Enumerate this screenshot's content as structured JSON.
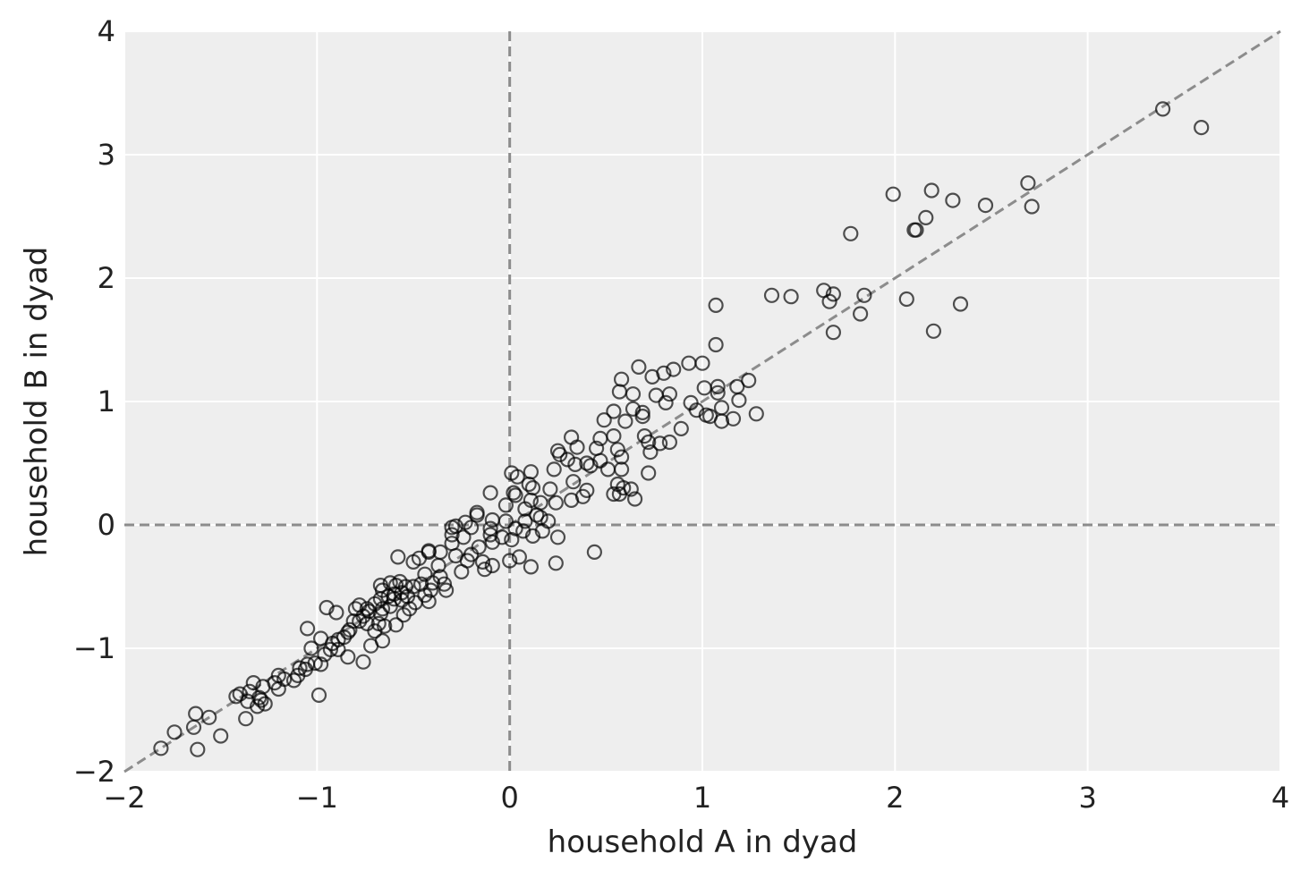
{
  "chart_data": {
    "type": "scatter",
    "title": "",
    "xlabel": "household A in dyad",
    "ylabel": "household B in dyad",
    "xlim": [
      -2,
      4
    ],
    "ylim": [
      -2,
      4
    ],
    "x_ticks": [
      -2,
      -1,
      0,
      1,
      2,
      3,
      4
    ],
    "y_ticks": [
      -2,
      -1,
      0,
      1,
      2,
      3,
      4
    ],
    "x_tick_labels": [
      "−2",
      "−1",
      "0",
      "1",
      "2",
      "3",
      "4"
    ],
    "y_tick_labels": [
      "−2",
      "−1",
      "0",
      "1",
      "2",
      "3",
      "4"
    ],
    "grid": true,
    "background": "#eeeeee",
    "marker": "open-circle",
    "marker_color": "#000000",
    "reference_lines": [
      {
        "kind": "vertical",
        "x": 0,
        "style": "dashed",
        "color": "#8c8c8c"
      },
      {
        "kind": "horizontal",
        "y": 0,
        "style": "dashed",
        "color": "#8c8c8c"
      },
      {
        "kind": "diagonal",
        "from": [
          -2,
          -2
        ],
        "to": [
          4,
          4
        ],
        "style": "dashed",
        "color": "#8c8c8c"
      }
    ],
    "points": [
      [
        3.39,
        3.37
      ],
      [
        3.59,
        3.22
      ],
      [
        2.69,
        2.77
      ],
      [
        2.71,
        2.58
      ],
      [
        2.47,
        2.59
      ],
      [
        2.3,
        2.63
      ],
      [
        2.19,
        2.71
      ],
      [
        1.99,
        2.68
      ],
      [
        2.16,
        2.49
      ],
      [
        2.1,
        2.39
      ],
      [
        2.11,
        2.39
      ],
      [
        1.77,
        2.36
      ],
      [
        2.34,
        1.79
      ],
      [
        2.06,
        1.83
      ],
      [
        2.2,
        1.57
      ],
      [
        1.84,
        1.86
      ],
      [
        1.82,
        1.71
      ],
      [
        1.68,
        1.87
      ],
      [
        1.63,
        1.9
      ],
      [
        1.66,
        1.81
      ],
      [
        1.68,
        1.56
      ],
      [
        1.36,
        1.86
      ],
      [
        1.46,
        1.85
      ],
      [
        1.07,
        1.78
      ],
      [
        1.07,
        1.46
      ],
      [
        0.93,
        1.31
      ],
      [
        1.0,
        1.31
      ],
      [
        0.85,
        1.26
      ],
      [
        0.8,
        1.23
      ],
      [
        0.67,
        1.28
      ],
      [
        0.58,
        1.18
      ],
      [
        0.74,
        1.2
      ],
      [
        1.24,
        1.17
      ],
      [
        1.18,
        1.12
      ],
      [
        1.08,
        1.12
      ],
      [
        1.01,
        1.11
      ],
      [
        0.57,
        1.08
      ],
      [
        0.64,
        1.06
      ],
      [
        0.76,
        1.05
      ],
      [
        0.83,
        1.06
      ],
      [
        1.08,
        1.07
      ],
      [
        1.19,
        1.01
      ],
      [
        0.94,
        0.99
      ],
      [
        0.81,
        0.99
      ],
      [
        0.64,
        0.94
      ],
      [
        0.69,
        0.91
      ],
      [
        0.97,
        0.93
      ],
      [
        1.1,
        0.95
      ],
      [
        1.02,
        0.89
      ],
      [
        1.28,
        0.9
      ],
      [
        0.54,
        0.92
      ],
      [
        0.49,
        0.85
      ],
      [
        0.6,
        0.84
      ],
      [
        1.04,
        0.88
      ],
      [
        1.1,
        0.84
      ],
      [
        1.16,
        0.86
      ],
      [
        0.69,
        0.88
      ],
      [
        0.89,
        0.78
      ],
      [
        0.7,
        0.72
      ],
      [
        0.54,
        0.72
      ],
      [
        0.47,
        0.7
      ],
      [
        0.72,
        0.67
      ],
      [
        0.78,
        0.66
      ],
      [
        0.83,
        0.67
      ],
      [
        0.73,
        0.59
      ],
      [
        0.72,
        0.42
      ],
      [
        0.65,
        0.21
      ],
      [
        0.56,
        0.61
      ],
      [
        0.58,
        0.55
      ],
      [
        0.45,
        0.62
      ],
      [
        0.35,
        0.63
      ],
      [
        0.32,
        0.71
      ],
      [
        0.25,
        0.6
      ],
      [
        0.26,
        0.57
      ],
      [
        0.47,
        0.52
      ],
      [
        0.4,
        0.5
      ],
      [
        0.42,
        0.48
      ],
      [
        0.58,
        0.45
      ],
      [
        0.51,
        0.45
      ],
      [
        0.34,
        0.49
      ],
      [
        0.3,
        0.53
      ],
      [
        0.23,
        0.45
      ],
      [
        0.11,
        0.43
      ],
      [
        0.01,
        0.42
      ],
      [
        0.04,
        0.39
      ],
      [
        0.1,
        0.33
      ],
      [
        0.12,
        0.3
      ],
      [
        0.21,
        0.29
      ],
      [
        0.33,
        0.35
      ],
      [
        0.56,
        0.33
      ],
      [
        0.59,
        0.3
      ],
      [
        0.63,
        0.29
      ],
      [
        0.54,
        0.25
      ],
      [
        0.57,
        0.25
      ],
      [
        0.4,
        0.28
      ],
      [
        0.38,
        0.23
      ],
      [
        0.32,
        0.2
      ],
      [
        0.24,
        0.18
      ],
      [
        0.16,
        0.18
      ],
      [
        0.11,
        0.2
      ],
      [
        0.02,
        0.26
      ],
      [
        0.03,
        0.24
      ],
      [
        -0.1,
        0.26
      ],
      [
        -0.02,
        0.16
      ],
      [
        0.08,
        0.13
      ],
      [
        0.14,
        0.08
      ],
      [
        0.16,
        0.06
      ],
      [
        0.2,
        0.03
      ],
      [
        0.08,
        0.03
      ],
      [
        -0.02,
        0.03
      ],
      [
        -0.09,
        0.04
      ],
      [
        -0.17,
        0.1
      ],
      [
        -0.17,
        0.08
      ],
      [
        -0.23,
        0.02
      ],
      [
        -0.28,
        -0.01
      ],
      [
        -0.3,
        -0.02
      ],
      [
        -0.2,
        -0.02
      ],
      [
        -0.1,
        -0.03
      ],
      [
        0.03,
        -0.03
      ],
      [
        0.07,
        -0.05
      ],
      [
        0.17,
        -0.05
      ],
      [
        -0.3,
        -0.08
      ],
      [
        -0.24,
        -0.1
      ],
      [
        -0.1,
        -0.08
      ],
      [
        -0.04,
        -0.1
      ],
      [
        0.01,
        -0.12
      ],
      [
        0.12,
        -0.09
      ],
      [
        0.25,
        -0.1
      ],
      [
        -0.3,
        -0.15
      ],
      [
        -0.16,
        -0.18
      ],
      [
        -0.09,
        -0.14
      ],
      [
        -0.2,
        -0.24
      ],
      [
        -0.28,
        -0.25
      ],
      [
        -0.36,
        -0.22
      ],
      [
        -0.22,
        -0.29
      ],
      [
        -0.14,
        -0.3
      ],
      [
        -0.09,
        -0.33
      ],
      [
        0.0,
        -0.29
      ],
      [
        0.05,
        -0.26
      ],
      [
        0.11,
        -0.34
      ],
      [
        0.24,
        -0.31
      ],
      [
        0.44,
        -0.22
      ],
      [
        -0.13,
        -0.36
      ],
      [
        -0.25,
        -0.38
      ],
      [
        -0.37,
        -0.33
      ],
      [
        -0.42,
        -0.21
      ],
      [
        -0.42,
        -0.22
      ],
      [
        -0.5,
        -0.3
      ],
      [
        -0.47,
        -0.27
      ],
      [
        -0.58,
        -0.26
      ],
      [
        -0.44,
        -0.4
      ],
      [
        -0.36,
        -0.42
      ],
      [
        -0.34,
        -0.48
      ],
      [
        -0.4,
        -0.47
      ],
      [
        -0.41,
        -0.53
      ],
      [
        -0.33,
        -0.53
      ],
      [
        -0.46,
        -0.48
      ],
      [
        -0.5,
        -0.5
      ],
      [
        -0.54,
        -0.5
      ],
      [
        -0.57,
        -0.46
      ],
      [
        -0.59,
        -0.49
      ],
      [
        -0.62,
        -0.47
      ],
      [
        -0.67,
        -0.49
      ],
      [
        -0.66,
        -0.53
      ],
      [
        -0.56,
        -0.55
      ],
      [
        -0.6,
        -0.56
      ],
      [
        -0.44,
        -0.57
      ],
      [
        -0.42,
        -0.62
      ],
      [
        -0.49,
        -0.63
      ],
      [
        -0.53,
        -0.58
      ],
      [
        -0.56,
        -0.61
      ],
      [
        -0.6,
        -0.6
      ],
      [
        -0.63,
        -0.58
      ],
      [
        -0.67,
        -0.6
      ],
      [
        -0.7,
        -0.64
      ],
      [
        -0.62,
        -0.66
      ],
      [
        -0.66,
        -0.68
      ],
      [
        -0.74,
        -0.68
      ],
      [
        -0.78,
        -0.65
      ],
      [
        -0.8,
        -0.68
      ],
      [
        -0.52,
        -0.68
      ],
      [
        -0.55,
        -0.73
      ],
      [
        -0.59,
        -0.81
      ],
      [
        -0.67,
        -0.72
      ],
      [
        -0.73,
        -0.7
      ],
      [
        -0.76,
        -0.74
      ],
      [
        -0.78,
        -0.78
      ],
      [
        -0.81,
        -0.78
      ],
      [
        -0.74,
        -0.8
      ],
      [
        -0.68,
        -0.8
      ],
      [
        -0.65,
        -0.82
      ],
      [
        -0.7,
        -0.86
      ],
      [
        -0.66,
        -0.94
      ],
      [
        -0.72,
        -0.98
      ],
      [
        -0.76,
        -1.11
      ],
      [
        -0.84,
        -0.87
      ],
      [
        -0.86,
        -0.91
      ],
      [
        -0.83,
        -0.85
      ],
      [
        -0.89,
        -0.93
      ],
      [
        -0.92,
        -0.96
      ],
      [
        -0.93,
        -1.01
      ],
      [
        -0.96,
        -1.05
      ],
      [
        -0.98,
        -1.13
      ],
      [
        -1.01,
        -1.12
      ],
      [
        -0.98,
        -0.92
      ],
      [
        -1.05,
        -0.84
      ],
      [
        -1.03,
        -1.0
      ],
      [
        -0.95,
        -0.67
      ],
      [
        -0.9,
        -0.71
      ],
      [
        -0.89,
        -1.01
      ],
      [
        -0.84,
        -1.07
      ],
      [
        -1.05,
        -1.13
      ],
      [
        -1.06,
        -1.17
      ],
      [
        -1.09,
        -1.16
      ],
      [
        -1.1,
        -1.22
      ],
      [
        -1.12,
        -1.26
      ],
      [
        -1.17,
        -1.25
      ],
      [
        -1.2,
        -1.22
      ],
      [
        -1.22,
        -1.28
      ],
      [
        -1.2,
        -1.33
      ],
      [
        -1.28,
        -1.31
      ],
      [
        -1.33,
        -1.28
      ],
      [
        -1.35,
        -1.35
      ],
      [
        -1.4,
        -1.37
      ],
      [
        -1.42,
        -1.39
      ],
      [
        -1.29,
        -1.42
      ],
      [
        -1.27,
        -1.45
      ],
      [
        -1.31,
        -1.47
      ],
      [
        -1.36,
        -1.43
      ],
      [
        -1.3,
        -1.4
      ],
      [
        -0.99,
        -1.38
      ],
      [
        -1.37,
        -1.57
      ],
      [
        -1.56,
        -1.56
      ],
      [
        -1.63,
        -1.53
      ],
      [
        -1.64,
        -1.64
      ],
      [
        -1.5,
        -1.71
      ],
      [
        -1.62,
        -1.82
      ],
      [
        -1.74,
        -1.68
      ],
      [
        -1.81,
        -1.81
      ]
    ]
  }
}
